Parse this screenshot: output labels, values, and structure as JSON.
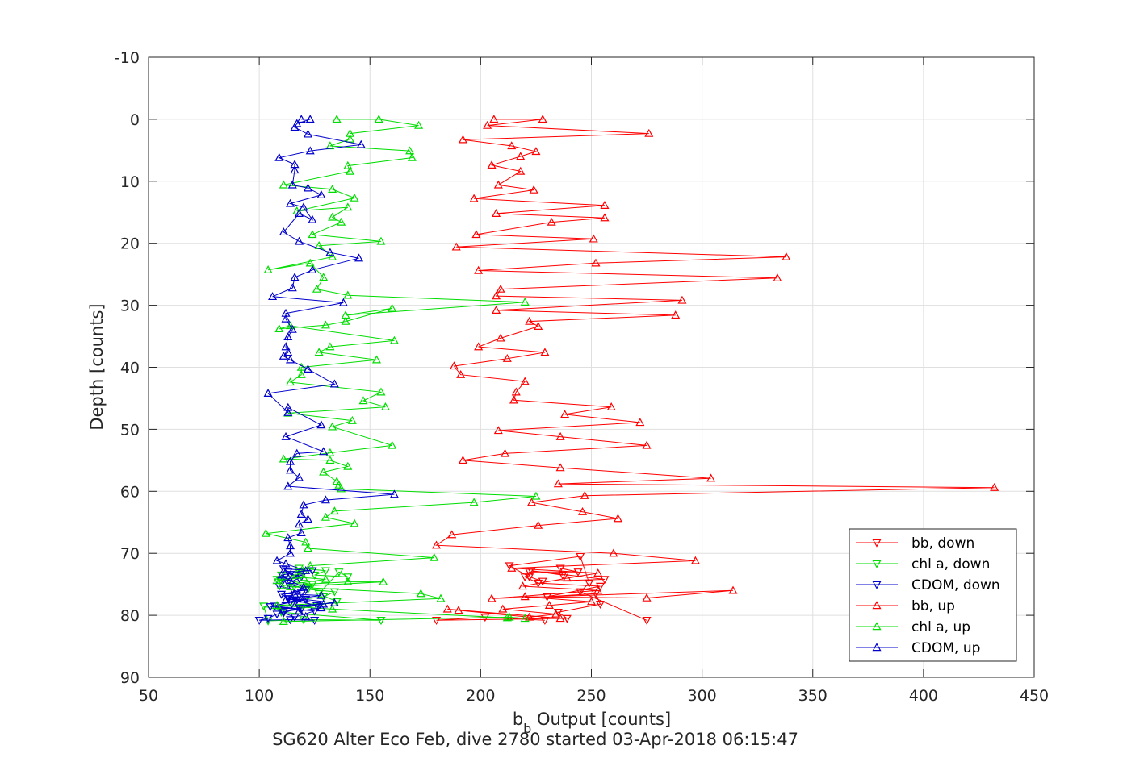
{
  "chart_data": {
    "type": "line",
    "xlabel_main": "b",
    "xlabel_sub": "b",
    "xlabel_rest": " Output [counts]",
    "ylabel": "Depth [counts]",
    "caption": "SG620 Alter Eco Feb, dive 2780 started 03-Apr-2018 06:15:47",
    "xlim": [
      50,
      450
    ],
    "ylim": [
      -10,
      90
    ],
    "y_reversed": true,
    "grid": true,
    "legend_position": "lower-right",
    "xticks": [
      50,
      100,
      150,
      200,
      250,
      300,
      350,
      400,
      450
    ],
    "yticks": [
      -10,
      0,
      10,
      20,
      30,
      40,
      50,
      60,
      70,
      80,
      90
    ],
    "series": [
      {
        "name": "bb, down",
        "color": "#ff0000",
        "marker": "triangle-down",
        "x": [
          229,
          202,
          180,
          239,
          235,
          254,
          252,
          230,
          254,
          226,
          220,
          222,
          244,
          236,
          237,
          223,
          256,
          228,
          222,
          213,
          245,
          249,
          245,
          275
        ],
        "y": [
          80.8,
          80.3,
          80.8,
          80.5,
          79.5,
          78.2,
          76.5,
          77.0,
          75.3,
          74.8,
          73.8,
          73.0,
          73.0,
          72.4,
          73.5,
          72.8,
          74.2,
          74.5,
          73.8,
          72.0,
          70.5,
          74.8,
          76.2,
          80.8
        ]
      },
      {
        "name": "chl a, down",
        "color": "#00dd00",
        "marker": "triangle-down",
        "x": [
          155,
          120,
          104,
          102,
          110,
          117,
          129,
          134,
          122,
          124,
          108,
          110,
          118,
          118,
          130,
          125,
          140,
          136,
          127,
          135,
          110,
          155
        ],
        "y": [
          80.8,
          80.7,
          80.9,
          78.5,
          79.3,
          77.5,
          77.0,
          76.2,
          75.8,
          75.0,
          74.2,
          73.5,
          73.0,
          72.4,
          72.8,
          73.5,
          73.8,
          73.0,
          76.5,
          77.8,
          79.5,
          80.8
        ]
      },
      {
        "name": "CDOM, down",
        "color": "#0000cc",
        "marker": "triangle-down",
        "x": [
          125,
          114,
          100,
          104,
          108,
          111,
          119,
          107,
          117,
          113,
          119,
          115,
          109,
          111,
          119,
          114,
          113,
          124,
          111,
          118,
          113,
          121,
          110,
          113,
          126,
          118,
          111,
          116,
          125,
          105,
          114,
          121
        ],
        "y": [
          80.8,
          80.7,
          80.8,
          80.5,
          79.8,
          79.4,
          79.0,
          78.5,
          77.5,
          77.0,
          76.4,
          75.8,
          75.3,
          74.2,
          73.8,
          73.4,
          73.0,
          72.8,
          72.5,
          74.0,
          74.8,
          75.9,
          76.6,
          77.3,
          78.4,
          78.8,
          79.6,
          80.3,
          79.3,
          78.6,
          77.9,
          77.4
        ]
      },
      {
        "name": "bb, up",
        "color": "#ff0000",
        "marker": "triangle-up",
        "x": [
          206,
          228,
          203,
          276,
          192,
          214,
          225,
          218,
          205,
          218,
          208,
          224,
          197,
          256,
          207,
          256,
          232,
          198,
          251,
          189,
          338,
          252,
          199,
          334,
          209,
          207,
          291,
          207,
          288,
          222,
          226,
          209,
          199,
          229,
          212,
          188,
          191,
          220,
          216,
          215,
          259,
          238,
          272,
          208,
          236,
          275,
          211,
          192,
          236,
          304,
          235,
          432,
          247,
          223,
          246,
          262,
          226,
          187,
          180,
          260,
          297,
          214,
          253,
          239,
          219,
          253,
          205,
          314,
          275,
          220,
          250,
          231,
          210,
          234,
          222,
          190,
          185,
          236
        ],
        "y": [
          0.0,
          0.0,
          1.0,
          2.3,
          3.3,
          4.3,
          5.2,
          6.0,
          7.4,
          8.4,
          10.6,
          11.4,
          12.8,
          13.9,
          15.2,
          15.9,
          16.6,
          18.6,
          19.3,
          20.6,
          22.2,
          23.2,
          24.4,
          25.6,
          27.4,
          28.5,
          29.2,
          30.8,
          31.6,
          32.6,
          33.4,
          35.3,
          36.7,
          37.6,
          38.6,
          39.8,
          41.2,
          42.3,
          44.0,
          45.3,
          46.4,
          47.6,
          48.9,
          50.2,
          51.2,
          52.6,
          53.9,
          55.0,
          56.2,
          57.9,
          58.8,
          59.4,
          60.7,
          61.8,
          63.3,
          64.4,
          65.5,
          67.0,
          68.7,
          70.0,
          71.2,
          72.4,
          73.2,
          74.0,
          75.3,
          76.0,
          77.3,
          76.0,
          77.2,
          77.0,
          77.8,
          78.4,
          79.0,
          79.8,
          80.3,
          79.2,
          79.0,
          80.5
        ]
      },
      {
        "name": "chl a, up",
        "color": "#00dd00",
        "marker": "triangle-up",
        "x": [
          135,
          154,
          172,
          141,
          141,
          132,
          168,
          169,
          140,
          141,
          111,
          133,
          143,
          117,
          140,
          133,
          137,
          124,
          155,
          127,
          133,
          104,
          123,
          129,
          126,
          140,
          220,
          139,
          160,
          139,
          130,
          109,
          114,
          161,
          132,
          127,
          153,
          119,
          119,
          114,
          155,
          147,
          157,
          113,
          142,
          133,
          160,
          132,
          111,
          132,
          140,
          129,
          135,
          136,
          137,
          225,
          197,
          134,
          130,
          143,
          103,
          121,
          122,
          179,
          123,
          120,
          117,
          108,
          120,
          130,
          110,
          140,
          156,
          114,
          173,
          182,
          108,
          133,
          212,
          220,
          213,
          111
        ],
        "y": [
          0.0,
          0.0,
          1.0,
          2.3,
          3.2,
          4.3,
          5.1,
          6.2,
          7.5,
          8.4,
          10.6,
          11.3,
          12.7,
          14.8,
          14.2,
          15.8,
          16.6,
          18.6,
          19.7,
          20.4,
          22.2,
          24.3,
          23.2,
          25.5,
          27.4,
          28.4,
          29.5,
          31.6,
          30.5,
          32.6,
          33.2,
          33.8,
          33.3,
          35.7,
          36.7,
          37.6,
          38.8,
          40.0,
          41.2,
          42.4,
          44.0,
          45.4,
          46.4,
          47.4,
          48.6,
          49.6,
          52.6,
          53.8,
          54.8,
          55.0,
          56.0,
          56.9,
          58.4,
          59.0,
          59.6,
          60.8,
          61.8,
          63.2,
          64.2,
          65.2,
          66.8,
          68.2,
          69.2,
          70.7,
          72.0,
          72.8,
          73.4,
          74.4,
          73.9,
          74.2,
          75.2,
          74.6,
          74.6,
          75.4,
          76.5,
          77.3,
          78.4,
          79.0,
          80.4,
          80.5,
          80.3,
          81.0
        ]
      },
      {
        "name": "CDOM, up",
        "color": "#0000cc",
        "marker": "triangle-up",
        "x": [
          119,
          123,
          117,
          116,
          122,
          146,
          123,
          109,
          116,
          116,
          115,
          122,
          128,
          114,
          120,
          124,
          118,
          111,
          118,
          132,
          145,
          124,
          116,
          115,
          106,
          138,
          112,
          112,
          115,
          113,
          112,
          113,
          111,
          114,
          122,
          134,
          104,
          113,
          113,
          128,
          112,
          129,
          117,
          114,
          114,
          118,
          113,
          161,
          130,
          120,
          119,
          122,
          118,
          119,
          113,
          114,
          114,
          108,
          112,
          121,
          110,
          114,
          120,
          116,
          128,
          112,
          120,
          134,
          116,
          129,
          115,
          128,
          118,
          121
        ],
        "y": [
          0.0,
          0.0,
          0.7,
          1.3,
          2.4,
          4.1,
          5.1,
          6.2,
          7.3,
          8.2,
          10.6,
          11.1,
          12.2,
          13.6,
          14.2,
          16.2,
          15.2,
          18.2,
          19.7,
          21.5,
          22.4,
          24.3,
          25.5,
          27.2,
          28.6,
          29.6,
          31.3,
          32.2,
          33.9,
          35.1,
          36.7,
          37.6,
          38.2,
          38.8,
          40.3,
          42.7,
          44.2,
          47.3,
          46.5,
          49.3,
          51.2,
          53.6,
          53.9,
          55.2,
          56.6,
          57.8,
          59.2,
          60.5,
          61.4,
          62.2,
          63.7,
          64.5,
          65.3,
          66.7,
          67.5,
          68.8,
          70.0,
          71.2,
          71.7,
          72.8,
          73.5,
          74.4,
          75.5,
          76.6,
          76.8,
          77.5,
          77.4,
          78.0,
          78.5,
          78.2,
          77.3,
          78.8,
          79.3,
          80.2
        ]
      }
    ]
  }
}
